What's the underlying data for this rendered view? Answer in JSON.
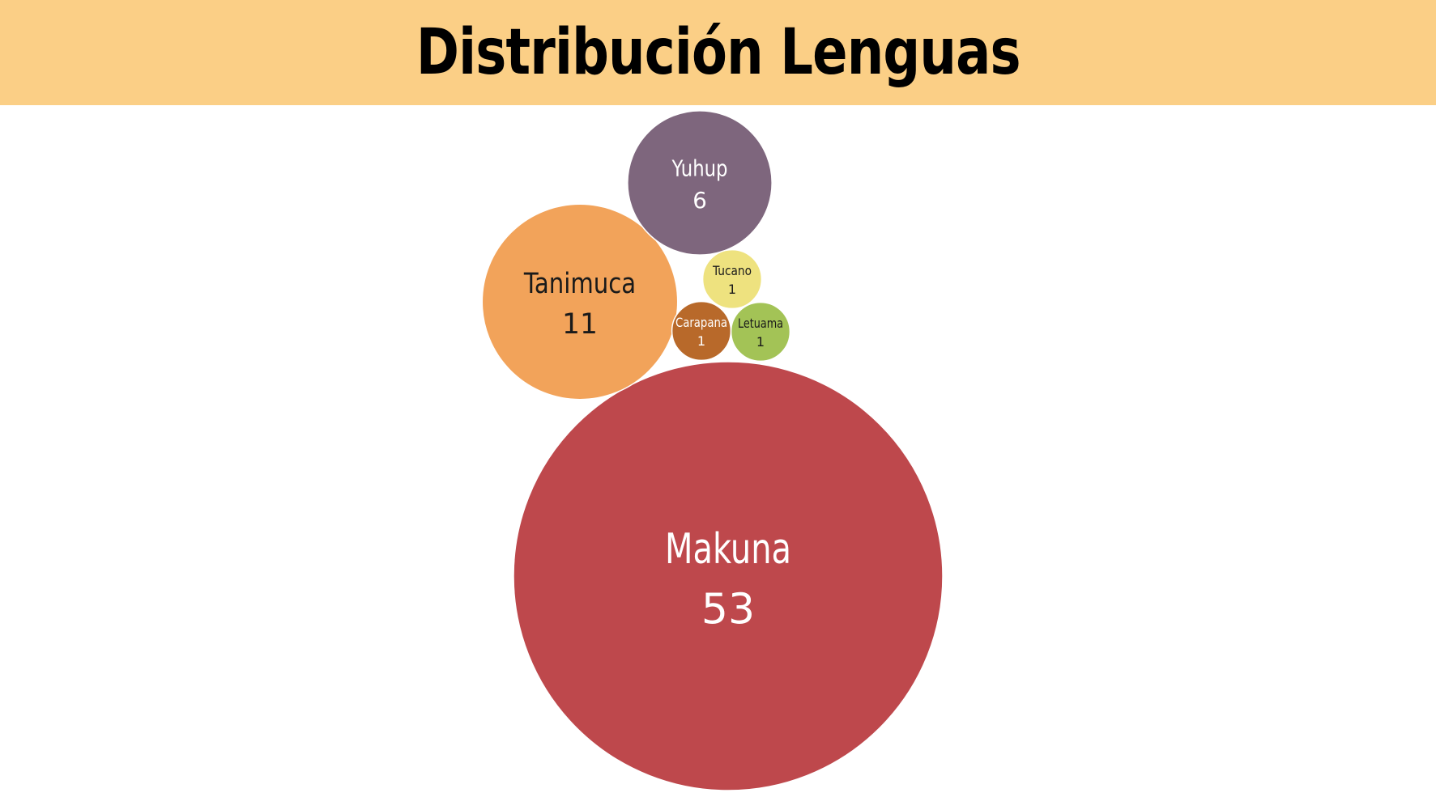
{
  "title": "Distribución Lenguas",
  "colors": {
    "title_band": "#FBCF86",
    "background": "#FFFFFF"
  },
  "chart_data": {
    "type": "bubble",
    "title": "Distribución Lenguas",
    "values_label": "",
    "bubbles": [
      {
        "name": "Makuna",
        "value": 53,
        "color": "#BE484C",
        "text_color": "#FFFFFF"
      },
      {
        "name": "Tanimuca",
        "value": 11,
        "color": "#F2A35A",
        "text_color": "#1A1A1A"
      },
      {
        "name": "Yuhup",
        "value": 6,
        "color": "#7E667D",
        "text_color": "#FFFFFF"
      },
      {
        "name": "Tucano",
        "value": 1,
        "color": "#EEE27F",
        "text_color": "#1A1A1A"
      },
      {
        "name": "Carapana",
        "value": 1,
        "color": "#B8692A",
        "text_color": "#FFFFFF"
      },
      {
        "name": "Letuama",
        "value": 1,
        "color": "#A3C356",
        "text_color": "#1A1A1A"
      }
    ]
  }
}
